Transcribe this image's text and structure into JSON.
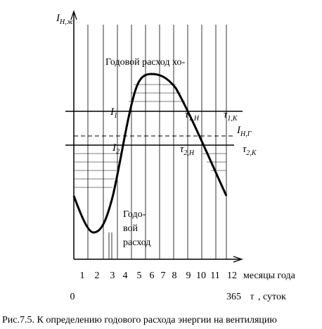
{
  "axis": {
    "y_label": {
      "main": "I",
      "sub": "Н,ж"
    }
  },
  "annotations": {
    "top": "Годовой расход хо-",
    "i1": {
      "main": "I",
      "sub": "1"
    },
    "tau1n": {
      "main": "τ",
      "sub": "1,Н"
    },
    "tau1k": {
      "main": "τ",
      "sub": "1,К"
    },
    "ing": {
      "main": "I",
      "sub": "Н,Г"
    },
    "i2": {
      "main": "I",
      "sub": "2"
    },
    "tau2n": {
      "main": "τ",
      "sub": "2,Н"
    },
    "tau2k": {
      "main": "τ",
      "sub": "2,К"
    },
    "bottom": [
      "Годо-",
      "вой",
      "расход"
    ]
  },
  "months": [
    "1",
    "2",
    "3",
    "4",
    "5",
    "6",
    "7",
    "8",
    "9",
    "10",
    "11",
    "12"
  ],
  "months_label": "месяцы года",
  "days": {
    "start": "0",
    "end": "365",
    "symbol": "τ",
    "unit": ", суток"
  },
  "caption": "Рис.7.5. К определению годового расхода энергии на вентиляцию"
}
